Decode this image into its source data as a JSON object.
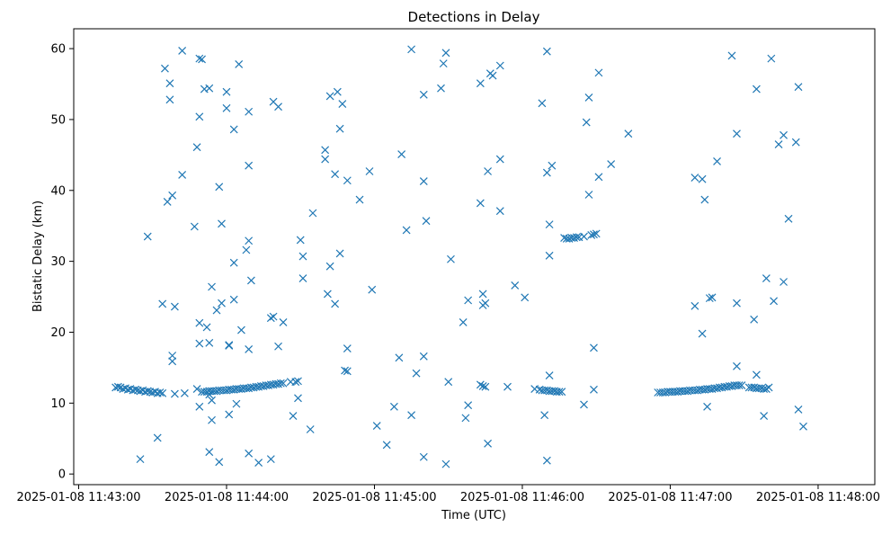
{
  "chart_data": {
    "type": "scatter",
    "title": "Detections in Delay",
    "xlabel": "Time (UTC)",
    "ylabel": "Bistatic Delay (km)",
    "marker": "x",
    "color": "#1f77b4",
    "grid": false,
    "x_unit_note_free": true,
    "xlim": [
      "2025-01-08 11:42:58",
      "2025-01-08 11:48:23"
    ],
    "ylim": [
      -1.5,
      62.8
    ],
    "x_ticks": [
      {
        "t": "2025-01-08 11:43:00",
        "label": "2025-01-08 11:43:00"
      },
      {
        "t": "2025-01-08 11:44:00",
        "label": "2025-01-08 11:44:00"
      },
      {
        "t": "2025-01-08 11:45:00",
        "label": "2025-01-08 11:45:00"
      },
      {
        "t": "2025-01-08 11:46:00",
        "label": "2025-01-08 11:46:00"
      },
      {
        "t": "2025-01-08 11:47:00",
        "label": "2025-01-08 11:47:00"
      },
      {
        "t": "2025-01-08 11:48:00",
        "label": "2025-01-08 11:48:00"
      }
    ],
    "y_ticks": [
      0,
      10,
      20,
      30,
      40,
      50,
      60
    ],
    "points": [
      [
        "11:43:15",
        12.2
      ],
      [
        "11:43:16",
        12.3
      ],
      [
        "11:43:17",
        12.2
      ],
      [
        "11:43:18",
        12.0
      ],
      [
        "11:43:19",
        12.1
      ],
      [
        "11:43:20",
        11.9
      ],
      [
        "11:43:21",
        12.0
      ],
      [
        "11:43:22",
        11.8
      ],
      [
        "11:43:23",
        11.9
      ],
      [
        "11:43:24",
        11.8
      ],
      [
        "11:43:25",
        11.7
      ],
      [
        "11:43:26",
        11.8
      ],
      [
        "11:43:27",
        11.6
      ],
      [
        "11:43:28",
        11.7
      ],
      [
        "11:43:29",
        11.6
      ],
      [
        "11:43:30",
        11.5
      ],
      [
        "11:43:31",
        11.6
      ],
      [
        "11:43:32",
        11.4
      ],
      [
        "11:43:33",
        11.5
      ],
      [
        "11:43:34",
        11.4
      ],
      [
        "11:43:39",
        11.3
      ],
      [
        "11:43:50",
        11.6
      ],
      [
        "11:43:51",
        11.6
      ],
      [
        "11:43:52",
        11.6
      ],
      [
        "11:43:53",
        11.7
      ],
      [
        "11:43:54",
        11.7
      ],
      [
        "11:43:55",
        11.7
      ],
      [
        "11:43:56",
        11.7
      ],
      [
        "11:43:57",
        11.8
      ],
      [
        "11:43:58",
        11.8
      ],
      [
        "11:43:59",
        11.8
      ],
      [
        "11:44:00",
        11.8
      ],
      [
        "11:44:01",
        11.9
      ],
      [
        "11:44:02",
        11.9
      ],
      [
        "11:44:03",
        11.9
      ],
      [
        "11:44:04",
        12.0
      ],
      [
        "11:44:05",
        12.0
      ],
      [
        "11:44:06",
        12.0
      ],
      [
        "11:44:07",
        12.1
      ],
      [
        "11:44:08",
        12.1
      ],
      [
        "11:44:09",
        12.1
      ],
      [
        "11:44:10",
        12.2
      ],
      [
        "11:44:11",
        12.2
      ],
      [
        "11:44:12",
        12.3
      ],
      [
        "11:44:13",
        12.3
      ],
      [
        "11:44:14",
        12.4
      ],
      [
        "11:44:15",
        12.4
      ],
      [
        "11:44:16",
        12.5
      ],
      [
        "11:44:17",
        12.5
      ],
      [
        "11:44:18",
        12.6
      ],
      [
        "11:44:19",
        12.6
      ],
      [
        "11:44:20",
        12.7
      ],
      [
        "11:44:21",
        12.7
      ],
      [
        "11:44:22",
        12.8
      ],
      [
        "11:44:23",
        12.8
      ],
      [
        "11:44:26",
        13.0
      ],
      [
        "11:44:28",
        13.0
      ],
      [
        "11:44:29",
        13.1
      ],
      [
        "11:46:55",
        11.5
      ],
      [
        "11:46:56",
        11.5
      ],
      [
        "11:46:57",
        11.5
      ],
      [
        "11:46:58",
        11.5
      ],
      [
        "11:46:59",
        11.6
      ],
      [
        "11:47:00",
        11.6
      ],
      [
        "11:47:01",
        11.6
      ],
      [
        "11:47:02",
        11.6
      ],
      [
        "11:47:03",
        11.6
      ],
      [
        "11:47:04",
        11.7
      ],
      [
        "11:47:05",
        11.7
      ],
      [
        "11:47:06",
        11.7
      ],
      [
        "11:47:07",
        11.7
      ],
      [
        "11:47:08",
        11.8
      ],
      [
        "11:47:09",
        11.8
      ],
      [
        "11:47:10",
        11.8
      ],
      [
        "11:47:11",
        11.8
      ],
      [
        "11:47:12",
        11.9
      ],
      [
        "11:47:13",
        11.9
      ],
      [
        "11:47:14",
        11.9
      ],
      [
        "11:47:15",
        12.0
      ],
      [
        "11:47:16",
        12.0
      ],
      [
        "11:47:17",
        12.0
      ],
      [
        "11:47:18",
        12.1
      ],
      [
        "11:47:19",
        12.1
      ],
      [
        "11:47:20",
        12.2
      ],
      [
        "11:47:21",
        12.2
      ],
      [
        "11:47:22",
        12.3
      ],
      [
        "11:47:23",
        12.3
      ],
      [
        "11:47:24",
        12.4
      ],
      [
        "11:47:25",
        12.4
      ],
      [
        "11:47:26",
        12.5
      ],
      [
        "11:47:27",
        12.5
      ],
      [
        "11:47:28",
        12.5
      ],
      [
        "11:47:29",
        12.5
      ],
      [
        "11:47:32",
        12.2
      ],
      [
        "11:47:33",
        12.2
      ],
      [
        "11:47:34",
        12.2
      ],
      [
        "11:47:35",
        12.1
      ],
      [
        "11:47:36",
        12.1
      ],
      [
        "11:47:37",
        12.1
      ],
      [
        "11:47:38",
        12.0
      ],
      [
        "11:47:39",
        12.0
      ],
      [
        "11:46:07",
        11.9
      ],
      [
        "11:46:08",
        11.8
      ],
      [
        "11:46:09",
        11.8
      ],
      [
        "11:46:10",
        11.8
      ],
      [
        "11:46:11",
        11.7
      ],
      [
        "11:46:12",
        11.7
      ],
      [
        "11:46:13",
        11.7
      ],
      [
        "11:46:14",
        11.6
      ],
      [
        "11:46:15",
        11.6
      ],
      [
        "11:46:16",
        11.6
      ],
      [
        "11:46:17",
        33.3
      ],
      [
        "11:46:18",
        33.2
      ],
      [
        "11:46:19",
        33.2
      ],
      [
        "11:46:20",
        33.3
      ],
      [
        "11:46:21",
        33.3
      ],
      [
        "11:46:22",
        33.4
      ],
      [
        "11:46:23",
        33.4
      ],
      [
        "11:46:25",
        33.5
      ],
      [
        "11:46:28",
        33.7
      ],
      [
        "11:46:29",
        33.8
      ],
      [
        "11:46:30",
        33.9
      ],
      [
        "11:45:43",
        12.6
      ],
      [
        "11:45:44",
        12.4
      ],
      [
        "11:45:45",
        12.3
      ],
      [
        "11:43:25",
        2.1
      ],
      [
        "11:43:28",
        33.5
      ],
      [
        "11:43:32",
        5.1
      ],
      [
        "11:43:34",
        24.0
      ],
      [
        "11:43:35",
        57.2
      ],
      [
        "11:43:36",
        38.4
      ],
      [
        "11:43:37",
        55.1
      ],
      [
        "11:43:37",
        52.8
      ],
      [
        "11:43:38",
        39.3
      ],
      [
        "11:43:38",
        16.7
      ],
      [
        "11:43:38",
        15.9
      ],
      [
        "11:43:39",
        23.6
      ],
      [
        "11:43:42",
        42.2
      ],
      [
        "11:43:42",
        59.7
      ],
      [
        "11:43:43",
        11.4
      ],
      [
        "11:43:47",
        34.9
      ],
      [
        "11:43:48",
        46.1
      ],
      [
        "11:43:48",
        12.0
      ],
      [
        "11:43:49",
        58.6
      ],
      [
        "11:43:49",
        50.4
      ],
      [
        "11:43:49",
        21.3
      ],
      [
        "11:43:49",
        18.4
      ],
      [
        "11:43:49",
        9.5
      ],
      [
        "11:43:50",
        58.5
      ],
      [
        "11:43:51",
        54.3
      ],
      [
        "11:43:52",
        20.7
      ],
      [
        "11:43:53",
        54.4
      ],
      [
        "11:43:53",
        18.5
      ],
      [
        "11:43:53",
        11.2
      ],
      [
        "11:43:53",
        3.1
      ],
      [
        "11:43:54",
        26.4
      ],
      [
        "11:43:54",
        7.6
      ],
      [
        "11:43:54",
        10.4
      ],
      [
        "11:43:56",
        23.1
      ],
      [
        "11:43:57",
        40.5
      ],
      [
        "11:43:57",
        1.7
      ],
      [
        "11:43:58",
        35.3
      ],
      [
        "11:43:58",
        24.1
      ],
      [
        "11:44:00",
        53.9
      ],
      [
        "11:44:00",
        51.6
      ],
      [
        "11:44:01",
        18.2
      ],
      [
        "11:44:01",
        18.1
      ],
      [
        "11:44:01",
        8.4
      ],
      [
        "11:44:03",
        48.6
      ],
      [
        "11:44:03",
        29.8
      ],
      [
        "11:44:03",
        24.6
      ],
      [
        "11:44:04",
        9.9
      ],
      [
        "11:44:05",
        57.8
      ],
      [
        "11:44:06",
        20.3
      ],
      [
        "11:44:08",
        31.6
      ],
      [
        "11:44:09",
        51.1
      ],
      [
        "11:44:09",
        43.5
      ],
      [
        "11:44:09",
        32.9
      ],
      [
        "11:44:09",
        17.6
      ],
      [
        "11:44:09",
        2.9
      ],
      [
        "11:44:10",
        27.3
      ],
      [
        "11:44:13",
        1.6
      ],
      [
        "11:44:18",
        22.0
      ],
      [
        "11:44:19",
        22.2
      ],
      [
        "11:44:19",
        52.5
      ],
      [
        "11:44:18",
        2.1
      ],
      [
        "11:44:21",
        51.8
      ],
      [
        "11:44:21",
        18.0
      ],
      [
        "11:44:23",
        21.4
      ],
      [
        "11:44:27",
        8.2
      ],
      [
        "11:44:29",
        10.7
      ],
      [
        "11:44:30",
        33.0
      ],
      [
        "11:44:31",
        30.7
      ],
      [
        "11:44:31",
        27.6
      ],
      [
        "11:44:35",
        36.8
      ],
      [
        "11:44:34",
        6.3
      ],
      [
        "11:44:40",
        45.7
      ],
      [
        "11:44:40",
        44.4
      ],
      [
        "11:44:41",
        25.4
      ],
      [
        "11:44:42",
        53.3
      ],
      [
        "11:44:42",
        29.3
      ],
      [
        "11:44:44",
        42.3
      ],
      [
        "11:44:44",
        24.0
      ],
      [
        "11:44:45",
        53.9
      ],
      [
        "11:44:46",
        48.7
      ],
      [
        "11:44:46",
        31.1
      ],
      [
        "11:44:47",
        52.2
      ],
      [
        "11:44:48",
        14.6
      ],
      [
        "11:44:49",
        14.5
      ],
      [
        "11:44:49",
        17.7
      ],
      [
        "11:44:49",
        41.4
      ],
      [
        "11:44:54",
        38.7
      ],
      [
        "11:44:58",
        42.7
      ],
      [
        "11:44:59",
        26.0
      ],
      [
        "11:45:01",
        6.8
      ],
      [
        "11:45:05",
        4.1
      ],
      [
        "11:45:08",
        9.5
      ],
      [
        "11:45:10",
        16.4
      ],
      [
        "11:45:11",
        45.1
      ],
      [
        "11:45:13",
        34.4
      ],
      [
        "11:45:15",
        59.9
      ],
      [
        "11:45:15",
        8.3
      ],
      [
        "11:45:17",
        14.2
      ],
      [
        "11:45:20",
        53.5
      ],
      [
        "11:45:20",
        41.3
      ],
      [
        "11:45:21",
        35.7
      ],
      [
        "11:45:20",
        16.6
      ],
      [
        "11:45:20",
        2.4
      ],
      [
        "11:45:27",
        54.4
      ],
      [
        "11:45:28",
        57.9
      ],
      [
        "11:45:29",
        59.4
      ],
      [
        "11:45:29",
        1.4
      ],
      [
        "11:45:31",
        30.3
      ],
      [
        "11:45:30",
        13.0
      ],
      [
        "11:45:36",
        21.4
      ],
      [
        "11:45:37",
        7.9
      ],
      [
        "11:45:38",
        9.7
      ],
      [
        "11:45:38",
        24.5
      ],
      [
        "11:45:43",
        38.2
      ],
      [
        "11:45:43",
        55.1
      ],
      [
        "11:45:44",
        25.4
      ],
      [
        "11:45:44",
        23.8
      ],
      [
        "11:45:45",
        24.1
      ],
      [
        "11:45:46",
        42.7
      ],
      [
        "11:45:46",
        4.3
      ],
      [
        "11:45:47",
        56.5
      ],
      [
        "11:45:48",
        56.2
      ],
      [
        "11:45:51",
        57.6
      ],
      [
        "11:45:51",
        44.4
      ],
      [
        "11:45:51",
        37.1
      ],
      [
        "11:45:54",
        12.3
      ],
      [
        "11:45:57",
        26.6
      ],
      [
        "11:46:01",
        24.9
      ],
      [
        "11:46:05",
        12.0
      ],
      [
        "11:46:08",
        52.3
      ],
      [
        "11:46:09",
        8.3
      ],
      [
        "11:46:10",
        59.6
      ],
      [
        "11:46:10",
        42.5
      ],
      [
        "11:46:11",
        35.2
      ],
      [
        "11:46:11",
        30.8
      ],
      [
        "11:46:11",
        13.9
      ],
      [
        "11:46:10",
        1.9
      ],
      [
        "11:46:12",
        43.5
      ],
      [
        "11:46:25",
        9.8
      ],
      [
        "11:46:26",
        49.6
      ],
      [
        "11:46:27",
        53.1
      ],
      [
        "11:46:27",
        39.4
      ],
      [
        "11:46:29",
        17.8
      ],
      [
        "11:46:29",
        11.9
      ],
      [
        "11:46:31",
        56.6
      ],
      [
        "11:46:31",
        41.9
      ],
      [
        "11:46:36",
        43.7
      ],
      [
        "11:46:43",
        48.0
      ],
      [
        "11:47:10",
        41.8
      ],
      [
        "11:47:10",
        23.7
      ],
      [
        "11:47:13",
        41.6
      ],
      [
        "11:47:13",
        19.8
      ],
      [
        "11:47:14",
        38.7
      ],
      [
        "11:47:15",
        9.5
      ],
      [
        "11:47:17",
        24.9
      ],
      [
        "11:47:16",
        24.8
      ],
      [
        "11:47:19",
        44.1
      ],
      [
        "11:47:25",
        59.0
      ],
      [
        "11:47:27",
        48.0
      ],
      [
        "11:47:27",
        24.1
      ],
      [
        "11:47:27",
        15.2
      ],
      [
        "11:47:34",
        21.8
      ],
      [
        "11:47:35",
        54.3
      ],
      [
        "11:47:35",
        14.0
      ],
      [
        "11:47:38",
        8.2
      ],
      [
        "11:47:39",
        27.6
      ],
      [
        "11:47:40",
        12.2
      ],
      [
        "11:47:41",
        58.6
      ],
      [
        "11:47:42",
        24.4
      ],
      [
        "11:47:44",
        46.5
      ],
      [
        "11:47:46",
        47.8
      ],
      [
        "11:47:46",
        27.1
      ],
      [
        "11:47:48",
        36.0
      ],
      [
        "11:47:51",
        46.8
      ],
      [
        "11:47:52",
        54.6
      ],
      [
        "11:47:52",
        9.1
      ],
      [
        "11:47:54",
        6.7
      ]
    ]
  }
}
